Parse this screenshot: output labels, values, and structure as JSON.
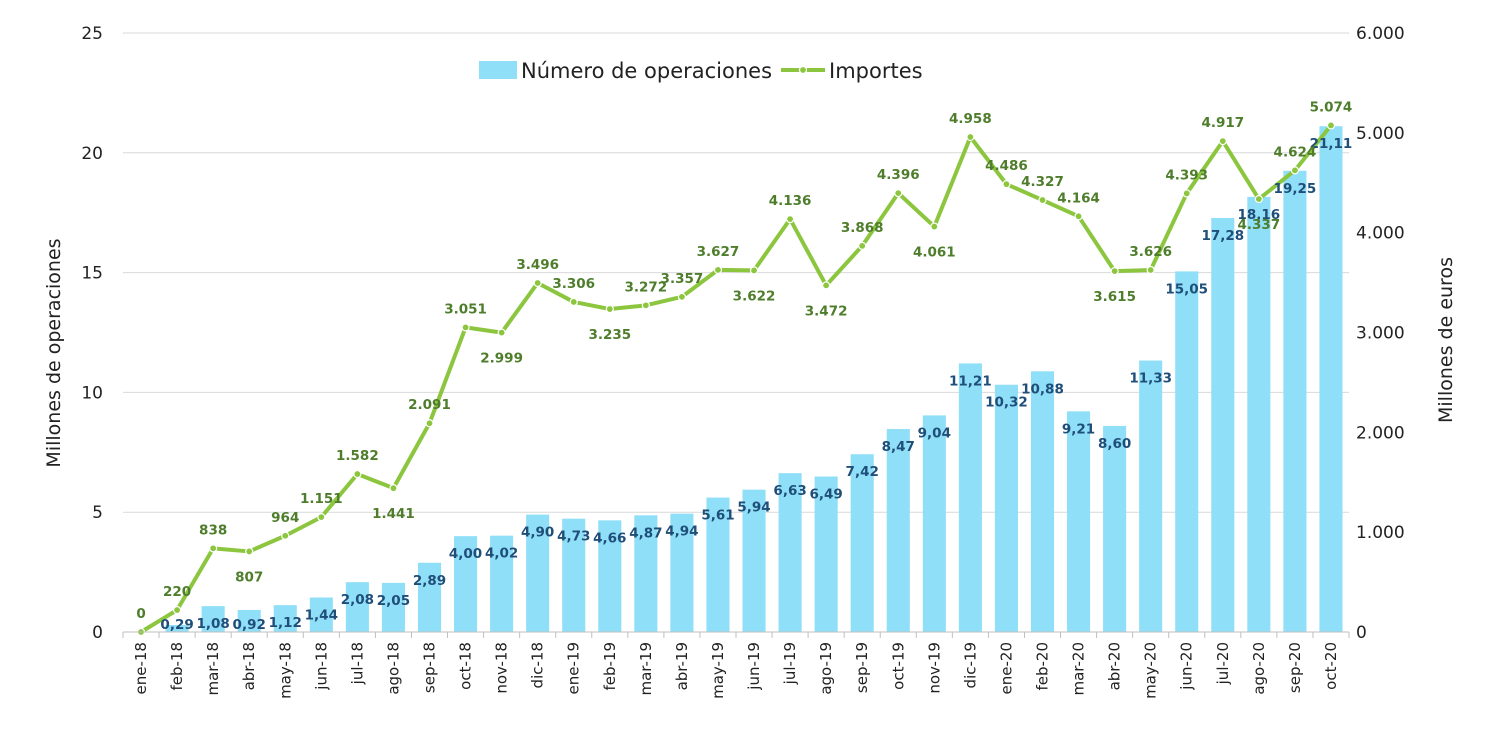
{
  "chart_data": {
    "type": "bar",
    "categories": [
      "ene-18",
      "feb-18",
      "mar-18",
      "abr-18",
      "may-18",
      "jun-18",
      "jul-18",
      "ago-18",
      "sep-18",
      "oct-18",
      "nov-18",
      "dic-18",
      "ene-19",
      "feb-19",
      "mar-19",
      "abr-19",
      "may-19",
      "jun-19",
      "jul-19",
      "ago-19",
      "sep-19",
      "oct-19",
      "nov-19",
      "dic-19",
      "ene-20",
      "feb-20",
      "mar-20",
      "abr-20",
      "may-20",
      "jun-20",
      "jul-20",
      "ago-20",
      "sep-20",
      "oct-20"
    ],
    "series": [
      {
        "name": "Número de operaciones",
        "type": "bar",
        "axis": "left",
        "color": "#8fdff8",
        "values": [
          0,
          0.29,
          1.08,
          0.92,
          1.12,
          1.44,
          2.08,
          2.05,
          2.89,
          4.0,
          4.02,
          4.9,
          4.73,
          4.66,
          4.87,
          4.94,
          5.61,
          5.94,
          6.63,
          6.49,
          7.42,
          8.47,
          9.04,
          11.21,
          10.32,
          10.88,
          9.21,
          8.6,
          11.33,
          15.05,
          17.28,
          18.16,
          19.25,
          21.11
        ],
        "labels": [
          "",
          "0,29",
          "1,08",
          "0,92",
          "1,12",
          "1,44",
          "2,08",
          "2,05",
          "2,89",
          "4,00",
          "4,02",
          "4,90",
          "4,73",
          "4,66",
          "4,87",
          "4,94",
          "5,61",
          "5,94",
          "6,63",
          "6,49",
          "7,42",
          "8,47",
          "9,04",
          "11,21",
          "10,32",
          "10,88",
          "9,21",
          "8,60",
          "11,33",
          "15,05",
          "17,28",
          "18,16",
          "19,25",
          "21,11"
        ]
      },
      {
        "name": "Importes",
        "type": "line",
        "axis": "right",
        "color": "#8cc63f",
        "values": [
          0,
          220,
          838,
          807,
          964,
          1151,
          1582,
          1441,
          2091,
          3051,
          2999,
          3496,
          3306,
          3235,
          3272,
          3357,
          3627,
          3622,
          4136,
          3472,
          3868,
          4396,
          4061,
          4958,
          4486,
          4327,
          4164,
          3615,
          3626,
          4393,
          4917,
          4337,
          4624,
          5074
        ],
        "labels": [
          "0",
          "220",
          "838",
          "807",
          "964",
          "1.151",
          "1.582",
          "1.441",
          "2.091",
          "3.051",
          "2.999",
          "3.496",
          "3.306",
          "3.235",
          "3.272",
          "3.357",
          "3.627",
          "3.622",
          "4.136",
          "3.472",
          "3.868",
          "4.396",
          "4.061",
          "4.958",
          "4.486",
          "4.327",
          "4.164",
          "3.615",
          "3.626",
          "4.393",
          "4.917",
          "4.337",
          "4.624",
          "5.074"
        ]
      }
    ],
    "ylabel": "Millones de operaciones",
    "y2label": "Millones de euros",
    "ylim": [
      0,
      25
    ],
    "y2lim": [
      0,
      6000
    ],
    "yticks": [
      "0",
      "5",
      "10",
      "15",
      "20",
      "25"
    ],
    "y2ticks": [
      "0",
      "1.000",
      "2.000",
      "3.000",
      "4.000",
      "5.000",
      "6.000"
    ],
    "grid": true,
    "legend_position": "top-center",
    "colors": {
      "bar_label": "#1f4e79",
      "line_label": "#4e7d2b",
      "grid": "#d9d9d9"
    }
  }
}
